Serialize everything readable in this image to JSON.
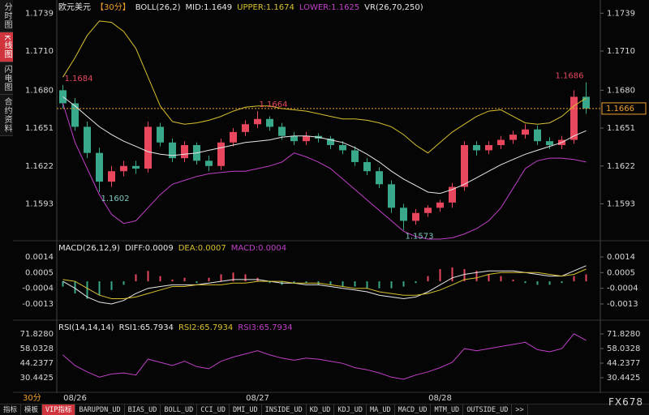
{
  "ui": {
    "sidebar": [
      "分时图",
      "K线图",
      "闪电图",
      "合约资料"
    ],
    "timeframe": "30分",
    "toolbar": [
      "指标",
      "模板",
      "VIP指标",
      "BARUPDN_UD",
      "BIAS_UD",
      "BOLL_UD",
      "CCI_UD",
      "DMI_UD",
      "INSIDE_UD",
      "KD_UD",
      "KDJ_UD",
      "MA_UD",
      "MACD_UD",
      "MTM_UD",
      "OUTSIDE_UD",
      ">>"
    ],
    "brand": "FX678"
  },
  "chart_data": [
    {
      "type": "candlestick",
      "header": [
        {
          "text": "欧元美元",
          "color": "#e8e8e8"
        },
        {
          "text": "【30分】",
          "color": "#f0a030"
        },
        {
          "text": "BOLL(26,2)",
          "color": "#e8e8e8"
        },
        {
          "text": "MID:1.1649",
          "color": "#e8e8e8"
        },
        {
          "text": "UPPER:1.1674",
          "color": "#d8c030"
        },
        {
          "text": "LOWER:1.1625",
          "color": "#c040c8"
        },
        {
          "text": "VR(26,70,250)",
          "color": "#e8e8e8"
        }
      ],
      "categories": [
        null,
        "08/26",
        null,
        null,
        null,
        null,
        null,
        null,
        null,
        null,
        null,
        null,
        null,
        null,
        null,
        null,
        "08/27",
        null,
        null,
        null,
        null,
        null,
        null,
        null,
        null,
        null,
        null,
        null,
        null,
        null,
        null,
        "08/28",
        null,
        null,
        null,
        null,
        null,
        null,
        null,
        null,
        null,
        null,
        null,
        null
      ],
      "open": [
        1.168,
        1.167,
        1.1652,
        1.1632,
        1.161,
        1.1618,
        1.1622,
        1.162,
        1.1652,
        1.164,
        1.1628,
        1.1638,
        1.1626,
        1.1622,
        1.164,
        1.1648,
        1.1654,
        1.1658,
        1.1652,
        1.1645,
        1.1641,
        1.1645,
        1.1643,
        1.1638,
        1.1634,
        1.1625,
        1.1618,
        1.1608,
        1.159,
        1.158,
        1.1586,
        1.159,
        1.1594,
        1.1606,
        1.1638,
        1.1634,
        1.1638,
        1.1642,
        1.1646,
        1.165,
        1.1641,
        1.1638,
        1.1642,
        1.1675
      ],
      "high": [
        1.1684,
        1.1674,
        1.1656,
        1.1636,
        1.1622,
        1.1626,
        1.1626,
        1.1656,
        1.1655,
        1.1643,
        1.1641,
        1.164,
        1.163,
        1.1643,
        1.1651,
        1.1657,
        1.1664,
        1.166,
        1.1655,
        1.1648,
        1.1648,
        1.1647,
        1.1645,
        1.1641,
        1.1637,
        1.1628,
        1.1621,
        1.1611,
        1.1593,
        1.1589,
        1.1592,
        1.1596,
        1.1609,
        1.1641,
        1.1641,
        1.1641,
        1.1645,
        1.1649,
        1.1654,
        1.1653,
        1.1644,
        1.1645,
        1.168,
        1.1686
      ],
      "low": [
        1.1666,
        1.1649,
        1.1628,
        1.1602,
        1.1606,
        1.1614,
        1.1616,
        1.1617,
        1.1637,
        1.1625,
        1.1625,
        1.1623,
        1.1618,
        1.1619,
        1.1637,
        1.1645,
        1.1651,
        1.1649,
        1.1642,
        1.1638,
        1.1638,
        1.164,
        1.1635,
        1.1631,
        1.1622,
        1.1615,
        1.1605,
        1.1586,
        1.1573,
        1.1577,
        1.1583,
        1.1587,
        1.159,
        1.1603,
        1.163,
        1.1631,
        1.1635,
        1.1639,
        1.1643,
        1.1638,
        1.1635,
        1.1635,
        1.1639,
        1.1662
      ],
      "close": [
        1.167,
        1.1652,
        1.1632,
        1.161,
        1.1618,
        1.1622,
        1.162,
        1.1652,
        1.164,
        1.1628,
        1.1638,
        1.1626,
        1.1622,
        1.164,
        1.1648,
        1.1654,
        1.1658,
        1.1652,
        1.1645,
        1.1641,
        1.1645,
        1.1643,
        1.1638,
        1.1634,
        1.1625,
        1.1618,
        1.1608,
        1.159,
        1.158,
        1.1586,
        1.159,
        1.1594,
        1.1606,
        1.1638,
        1.1634,
        1.1638,
        1.1642,
        1.1646,
        1.165,
        1.1641,
        1.1638,
        1.1642,
        1.1675,
        1.1666
      ],
      "up_color": "#e8475e",
      "down_color": "#3aa88a",
      "series": [
        {
          "color": "#d8c030",
          "values": [
            1.169,
            1.1705,
            1.1722,
            1.1733,
            1.1732,
            1.1725,
            1.1712,
            1.169,
            1.1668,
            1.1656,
            1.1654,
            1.1655,
            1.1657,
            1.166,
            1.1664,
            1.1667,
            1.1668,
            1.1668,
            1.1666,
            1.1665,
            1.1664,
            1.1662,
            1.166,
            1.1658,
            1.1658,
            1.1657,
            1.1655,
            1.1652,
            1.1646,
            1.1638,
            1.1632,
            1.164,
            1.1648,
            1.1654,
            1.166,
            1.1664,
            1.1665,
            1.166,
            1.1655,
            1.1654,
            1.1655,
            1.166,
            1.1668,
            1.1674
          ]
        },
        {
          "color": "#e8e8e8",
          "values": [
            1.1675,
            1.1668,
            1.166,
            1.1652,
            1.1646,
            1.1641,
            1.1637,
            1.1633,
            1.1631,
            1.163,
            1.1631,
            1.1632,
            1.1634,
            1.1636,
            1.1638,
            1.164,
            1.1641,
            1.1642,
            1.1644,
            1.1645,
            1.1645,
            1.1644,
            1.1642,
            1.164,
            1.1636,
            1.1631,
            1.1625,
            1.1618,
            1.1612,
            1.1607,
            1.1602,
            1.1601,
            1.1604,
            1.1608,
            1.1613,
            1.1618,
            1.1623,
            1.1627,
            1.1631,
            1.1634,
            1.1637,
            1.164,
            1.1645,
            1.1649
          ]
        },
        {
          "color": "#c040c8",
          "values": [
            1.167,
            1.164,
            1.162,
            1.16,
            1.1585,
            1.1578,
            1.158,
            1.159,
            1.16,
            1.1608,
            1.1611,
            1.1614,
            1.1616,
            1.1617,
            1.1618,
            1.1618,
            1.162,
            1.1622,
            1.1625,
            1.1632,
            1.1629,
            1.1625,
            1.162,
            1.1612,
            1.1604,
            1.1596,
            1.1588,
            1.158,
            1.1572,
            1.1568,
            1.1566,
            1.1566,
            1.1567,
            1.157,
            1.1574,
            1.158,
            1.159,
            1.1605,
            1.162,
            1.1626,
            1.1628,
            1.1628,
            1.1627,
            1.1625
          ]
        }
      ],
      "annotations": [
        1.1684,
        1.1664,
        1.1602,
        1.1573,
        1.1686
      ],
      "annotation_colors": {
        "high": "#e8475e",
        "low": "#7cc8c0"
      },
      "current_price": 1.1666,
      "current_price_color": "#f0a030",
      "ylim": [
        1.1566,
        1.1746
      ],
      "yticks": [
        1.1739,
        {
          "value": 1.171,
          "label": "1.1710"
        },
        {
          "value": 1.168,
          "label": "1.1680"
        },
        1.1651,
        1.1622,
        1.1593
      ],
      "grid": false
    },
    {
      "type": "macd",
      "header": [
        {
          "text": "MACD(26,12,9)",
          "color": "#e8e8e8"
        },
        {
          "text": "DIFF:0.0009",
          "color": "#e8e8e8"
        },
        {
          "text": "DEA:0.0007",
          "color": "#d8c030"
        },
        {
          "text": "MACD:0.0004",
          "color": "#c040c8"
        }
      ],
      "values": [
        -0.0003,
        -0.0007,
        -0.001,
        -0.0008,
        -0.0005,
        -0.0002,
        0.0004,
        0.0006,
        0.0003,
        0.0001,
        0.0002,
        -0.0001,
        0.0002,
        0.0004,
        0.0005,
        0.0004,
        0.0002,
        -0.0001,
        -0.0002,
        -0.0001,
        -0.0001,
        -0.0002,
        -0.0002,
        -0.0003,
        -0.0003,
        -0.0004,
        -0.0004,
        -0.0004,
        -0.0003,
        -0.0001,
        0.0003,
        0.0007,
        0.0008,
        0.0007,
        0.0006,
        0.0004,
        0.0003,
        0.0001,
        -0.0001,
        -0.0002,
        -0.0002,
        -0.0001,
        0.0003,
        0.0004
      ],
      "up_color": "#e8475e",
      "down_color": "#3aa88a",
      "series": [
        {
          "color": "#e8e8e8",
          "values": [
            0.0,
            -0.0004,
            -0.0009,
            -0.0012,
            -0.0013,
            -0.0011,
            -0.0007,
            -0.0004,
            -0.0003,
            -0.0002,
            -0.0002,
            -0.0002,
            -0.0001,
            0.0,
            0.0001,
            0.0001,
            0.0001,
            0.0,
            -0.0001,
            -0.0001,
            -0.0002,
            -0.0002,
            -0.0003,
            -0.0004,
            -0.0005,
            -0.0006,
            -0.0008,
            -0.0009,
            -0.001,
            -0.0009,
            -0.0006,
            -0.0002,
            0.0002,
            0.0004,
            0.0005,
            0.0006,
            0.0006,
            0.0006,
            0.0005,
            0.0004,
            0.0003,
            0.0003,
            0.0006,
            0.0009
          ]
        },
        {
          "color": "#d8c030",
          "values": [
            0.0001,
            0.0,
            -0.0004,
            -0.0008,
            -0.001,
            -0.001,
            -0.0009,
            -0.0007,
            -0.0005,
            -0.0003,
            -0.0003,
            -0.0002,
            -0.0002,
            -0.0002,
            -0.0001,
            -0.0001,
            0.0,
            0.0,
            0.0,
            -0.0001,
            -0.0001,
            -0.0001,
            -0.0002,
            -0.0003,
            -0.0004,
            -0.0004,
            -0.0006,
            -0.0007,
            -0.0008,
            -0.0008,
            -0.0007,
            -0.0005,
            -0.0002,
            0.0001,
            0.0002,
            0.0004,
            0.0005,
            0.0005,
            0.0005,
            0.0005,
            0.0004,
            0.0003,
            0.0004,
            0.0007
          ]
        }
      ],
      "ylim": [
        -0.002,
        0.0021
      ],
      "yticks": [
        0.0014,
        0.0005,
        -0.0004,
        -0.0013
      ],
      "grid": false
    },
    {
      "type": "line",
      "header": [
        {
          "text": "RSI(14,14,14)",
          "color": "#e8e8e8"
        },
        {
          "text": "RSI1:65.7934",
          "color": "#e8e8e8"
        },
        {
          "text": "RSI2:65.7934",
          "color": "#d8c030"
        },
        {
          "text": "RSI3:65.7934",
          "color": "#c040c8"
        }
      ],
      "series": [
        {
          "color": "#c040c8",
          "values": [
            52,
            42,
            36,
            31,
            34,
            35,
            33,
            48,
            45,
            42,
            46,
            41,
            39,
            46,
            50,
            53,
            56,
            52,
            49,
            47,
            49,
            48,
            46,
            44,
            40,
            38,
            35,
            31,
            29,
            33,
            36,
            40,
            45,
            58,
            56,
            58,
            60,
            62,
            64,
            57,
            55,
            58,
            72,
            65.7934
          ]
        }
      ],
      "ylim": [
        18.2,
        82.6
      ],
      "yticks": [
        {
          "value": 71.828,
          "label": "71.8280"
        },
        58.0328,
        44.2377,
        30.4425
      ],
      "grid": false
    }
  ]
}
